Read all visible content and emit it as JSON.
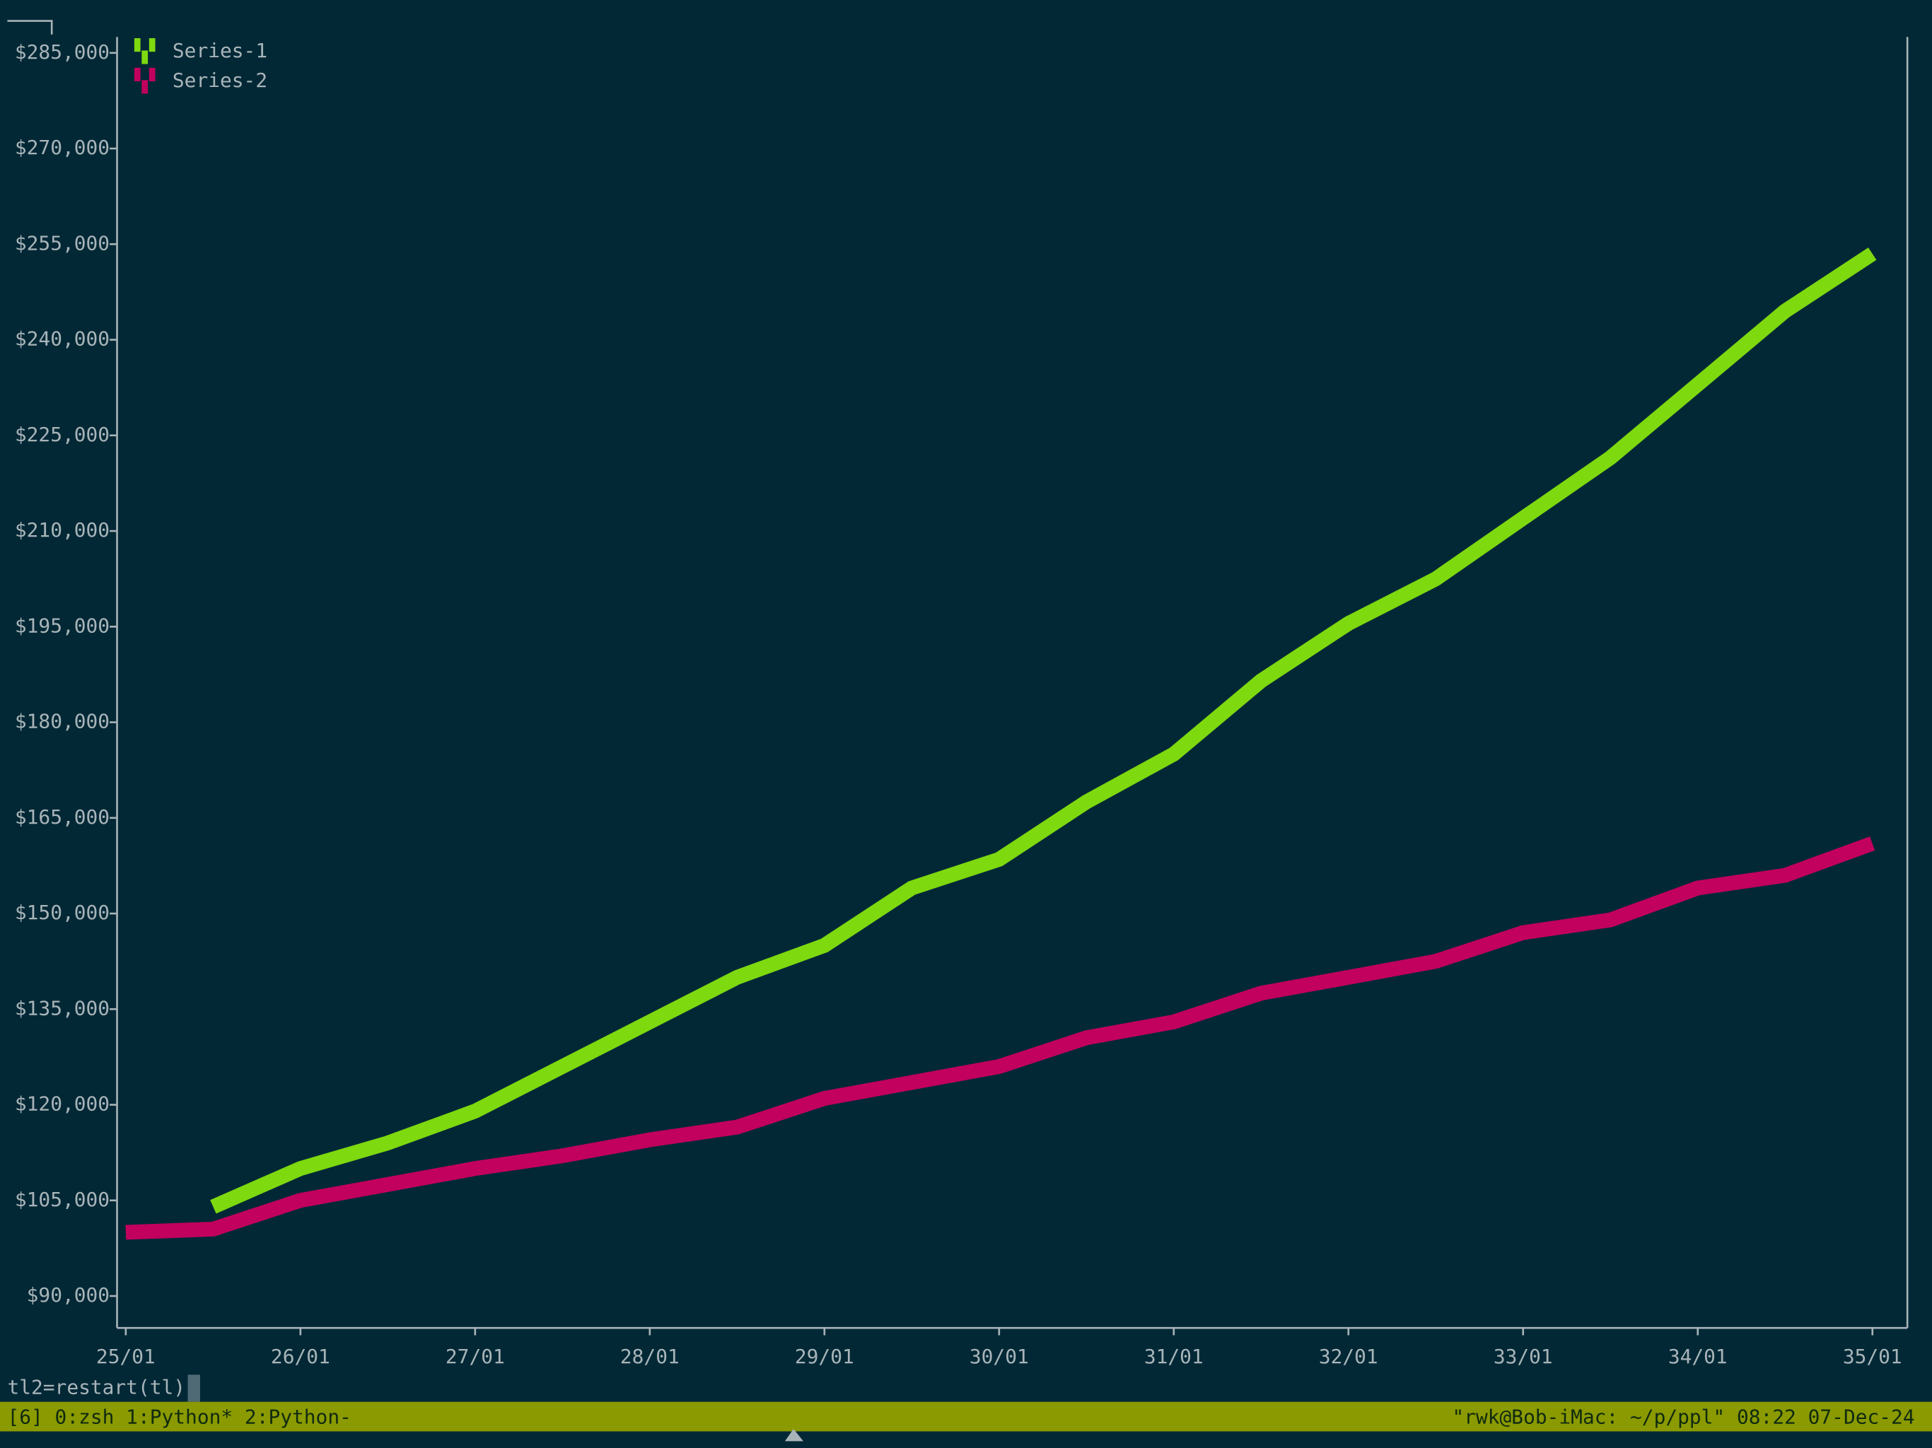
{
  "chart_data": {
    "type": "line",
    "x": [
      0,
      0.5,
      1,
      1.5,
      2,
      2.5,
      3,
      3.5,
      4,
      4.5,
      5,
      5.5,
      6,
      6.5,
      7,
      7.5,
      8,
      8.5,
      9,
      9.5,
      10
    ],
    "series": [
      {
        "name": "Series-1",
        "color": "#7ed90f",
        "values": [
          null,
          104000,
          110000,
          114000,
          119000,
          126000,
          133000,
          140000,
          145000,
          154000,
          158500,
          167500,
          175000,
          186500,
          195500,
          202500,
          212000,
          221500,
          233000,
          244500,
          253500
        ]
      },
      {
        "name": "Series-2",
        "color": "#c2005e",
        "values": [
          100000,
          100500,
          105000,
          107500,
          110000,
          112000,
          114500,
          116500,
          121000,
          123500,
          126000,
          130500,
          133000,
          137500,
          140000,
          142500,
          147000,
          149000,
          154000,
          156000,
          161000
        ]
      }
    ],
    "xlim": [
      -0.05,
      10.2
    ],
    "xticks": [
      {
        "value": 0,
        "label": "25/01"
      },
      {
        "value": 1,
        "label": "26/01"
      },
      {
        "value": 2,
        "label": "27/01"
      },
      {
        "value": 3,
        "label": "28/01"
      },
      {
        "value": 4,
        "label": "29/01"
      },
      {
        "value": 5,
        "label": "30/01"
      },
      {
        "value": 6,
        "label": "31/01"
      },
      {
        "value": 7,
        "label": "32/01"
      },
      {
        "value": 8,
        "label": "33/01"
      },
      {
        "value": 9,
        "label": "34/01"
      },
      {
        "value": 10,
        "label": "35/01"
      }
    ],
    "ylim": [
      85000,
      287500
    ],
    "yticks": [
      {
        "value": 90000,
        "label": "$90,000"
      },
      {
        "value": 105000,
        "label": "$105,000"
      },
      {
        "value": 120000,
        "label": "$120,000"
      },
      {
        "value": 135000,
        "label": "$135,000"
      },
      {
        "value": 150000,
        "label": "$150,000"
      },
      {
        "value": 165000,
        "label": "$165,000"
      },
      {
        "value": 180000,
        "label": "$180,000"
      },
      {
        "value": 195000,
        "label": "$195,000"
      },
      {
        "value": 210000,
        "label": "$210,000"
      },
      {
        "value": 225000,
        "label": "$225,000"
      },
      {
        "value": 240000,
        "label": "$240,000"
      },
      {
        "value": 255000,
        "label": "$255,000"
      },
      {
        "value": 270000,
        "label": "$270,000"
      },
      {
        "value": 285000,
        "label": "$285,000"
      }
    ],
    "legend": "top-left"
  },
  "terminal": {
    "command": "tl2=restart(tl)",
    "status_left": "[6] 0:zsh  1:Python* 2:Python-",
    "status_right": "\"rwk@Bob-iMac: ~/p/ppl\" 08:22 07-Dec-24"
  }
}
